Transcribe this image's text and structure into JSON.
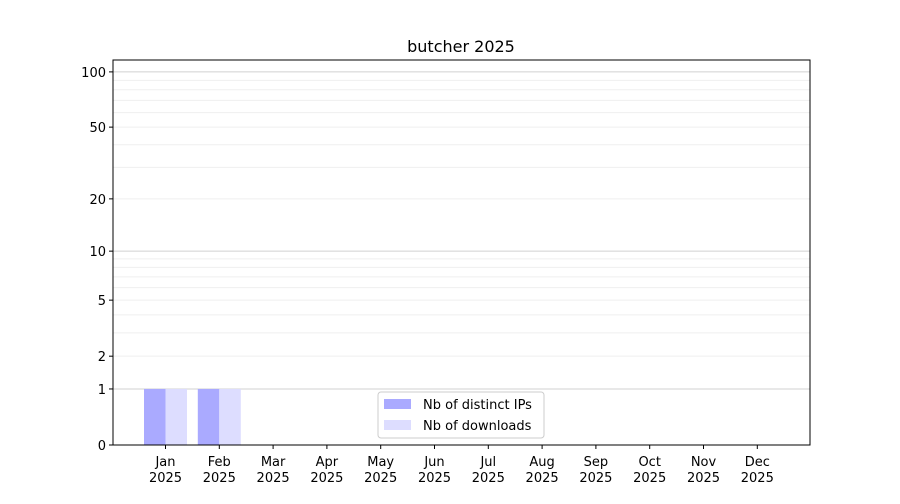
{
  "chart_data": {
    "type": "bar",
    "title": "butcher 2025",
    "xlabel": "",
    "ylabel": "",
    "yscale": "symlog (log of 1+y)",
    "ylim": [
      0,
      116
    ],
    "yticks": [
      0,
      1,
      2,
      5,
      10,
      20,
      50,
      100
    ],
    "ytick_labels": [
      "0",
      "1",
      "2",
      "5",
      "10",
      "20",
      "50",
      "100"
    ],
    "grid": true,
    "categories": [
      "Jan\n2025",
      "Feb\n2025",
      "Mar\n2025",
      "Apr\n2025",
      "May\n2025",
      "Jun\n2025",
      "Jul\n2025",
      "Aug\n2025",
      "Sep\n2025",
      "Oct\n2025",
      "Nov\n2025",
      "Dec\n2025"
    ],
    "series": [
      {
        "name": "Nb of distinct IPs",
        "color": "#aaaaff",
        "values": [
          1,
          1,
          0,
          0,
          0,
          0,
          0,
          0,
          0,
          0,
          0,
          0
        ]
      },
      {
        "name": "Nb of downloads",
        "color": "#ddddff",
        "values": [
          1,
          1,
          0,
          0,
          0,
          0,
          0,
          0,
          0,
          0,
          0,
          0
        ]
      }
    ],
    "legend": "bottom-center"
  }
}
